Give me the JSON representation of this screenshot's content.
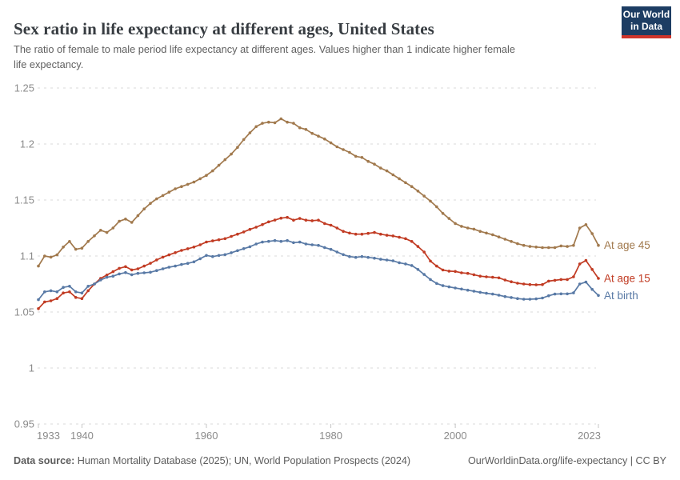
{
  "header": {
    "title": "Sex ratio in life expectancy at different ages, United States",
    "subtitle_line1": "The ratio of female to male period life expectancy at different ages. Values higher than 1 indicate higher female",
    "subtitle_line2": "life expectancy.",
    "logo": {
      "line1": "Our World",
      "line2": "in Data",
      "bg_color": "#1d3d63",
      "accent_color": "#cf352b"
    }
  },
  "footer": {
    "datasource_label": "Data source:",
    "datasource_text": " Human Mortality Database (2025); UN, World Population Prospects (2024)",
    "right_text": "OurWorldinData.org/life-expectancy | CC BY"
  },
  "chart_data": {
    "type": "line",
    "title": "Sex ratio in life expectancy at different ages, United States",
    "xlabel": "",
    "ylabel": "",
    "ylim": [
      0.95,
      1.25
    ],
    "yticks": [
      0.95,
      1,
      1.05,
      1.1,
      1.15,
      1.2,
      1.25
    ],
    "xticks": [
      1933,
      1940,
      1960,
      1980,
      2000,
      2023
    ],
    "grid": "horizontal-dashed",
    "legend_position": "end-of-line-labels",
    "marker": "dot",
    "axis_text_color": "#8b8b8b",
    "grid_color": "#d8d8d8",
    "x": [
      1933,
      1934,
      1935,
      1936,
      1937,
      1938,
      1939,
      1940,
      1941,
      1942,
      1943,
      1944,
      1945,
      1946,
      1947,
      1948,
      1949,
      1950,
      1951,
      1952,
      1953,
      1954,
      1955,
      1956,
      1957,
      1958,
      1959,
      1960,
      1961,
      1962,
      1963,
      1964,
      1965,
      1966,
      1967,
      1968,
      1969,
      1970,
      1971,
      1972,
      1973,
      1974,
      1975,
      1976,
      1977,
      1978,
      1979,
      1980,
      1981,
      1982,
      1983,
      1984,
      1985,
      1986,
      1987,
      1988,
      1989,
      1990,
      1991,
      1992,
      1993,
      1994,
      1995,
      1996,
      1997,
      1998,
      1999,
      2000,
      2001,
      2002,
      2003,
      2004,
      2005,
      2006,
      2007,
      2008,
      2009,
      2010,
      2011,
      2012,
      2013,
      2014,
      2015,
      2016,
      2017,
      2018,
      2019,
      2020,
      2021,
      2022,
      2023
    ],
    "series": [
      {
        "name": "At age 45",
        "color": "#A1794D",
        "values": [
          1.091,
          1.1,
          1.099,
          1.101,
          1.108,
          1.113,
          1.106,
          1.107,
          1.113,
          1.118,
          1.123,
          1.121,
          1.125,
          1.131,
          1.133,
          1.13,
          1.136,
          1.142,
          1.147,
          1.151,
          1.154,
          1.157,
          1.16,
          1.162,
          1.164,
          1.166,
          1.169,
          1.172,
          1.176,
          1.181,
          1.186,
          1.191,
          1.197,
          1.204,
          1.21,
          1.2155,
          1.2185,
          1.2195,
          1.219,
          1.2225,
          1.2195,
          1.2185,
          1.2145,
          1.213,
          1.2095,
          1.207,
          1.2045,
          1.201,
          1.1975,
          1.195,
          1.1925,
          1.189,
          1.188,
          1.1845,
          1.182,
          1.1785,
          1.176,
          1.1725,
          1.169,
          1.1655,
          1.162,
          1.158,
          1.1535,
          1.149,
          1.144,
          1.138,
          1.1335,
          1.129,
          1.1265,
          1.125,
          1.124,
          1.122,
          1.1205,
          1.119,
          1.117,
          1.115,
          1.113,
          1.111,
          1.1095,
          1.1085,
          1.108,
          1.1075,
          1.1075,
          1.1075,
          1.109,
          1.1085,
          1.1095,
          1.125,
          1.128,
          1.12,
          1.1095
        ]
      },
      {
        "name": "At age 15",
        "color": "#C13B23",
        "values": [
          1.053,
          1.059,
          1.06,
          1.062,
          1.067,
          1.068,
          1.063,
          1.062,
          1.069,
          1.075,
          1.08,
          1.083,
          1.086,
          1.089,
          1.0905,
          1.0876,
          1.0886,
          1.091,
          1.0935,
          1.0965,
          1.099,
          1.101,
          1.103,
          1.105,
          1.1065,
          1.108,
          1.11,
          1.1125,
          1.1135,
          1.1145,
          1.1155,
          1.1175,
          1.1195,
          1.1215,
          1.1238,
          1.1257,
          1.1281,
          1.1305,
          1.1321,
          1.1338,
          1.1345,
          1.132,
          1.1335,
          1.132,
          1.1315,
          1.132,
          1.129,
          1.1275,
          1.125,
          1.122,
          1.1205,
          1.1195,
          1.1195,
          1.1202,
          1.121,
          1.1195,
          1.1185,
          1.1179,
          1.1167,
          1.1155,
          1.113,
          1.1085,
          1.1035,
          1.0955,
          1.091,
          1.0875,
          1.0865,
          1.0862,
          1.085,
          1.0845,
          1.0833,
          1.082,
          1.0814,
          1.081,
          1.0805,
          1.0786,
          1.077,
          1.0757,
          1.075,
          1.0745,
          1.0743,
          1.0745,
          1.0776,
          1.0783,
          1.079,
          1.079,
          1.0814,
          1.0929,
          1.096,
          1.088,
          1.08
        ]
      },
      {
        "name": "At birth",
        "color": "#5879A5",
        "values": [
          1.061,
          1.068,
          1.069,
          1.068,
          1.072,
          1.073,
          1.068,
          1.067,
          1.073,
          1.075,
          1.0786,
          1.081,
          1.082,
          1.084,
          1.0852,
          1.0833,
          1.0845,
          1.085,
          1.0855,
          1.087,
          1.0886,
          1.09,
          1.091,
          1.0924,
          1.0934,
          1.0948,
          1.0976,
          1.1005,
          1.0995,
          1.1005,
          1.1012,
          1.1029,
          1.1048,
          1.1066,
          1.1083,
          1.1107,
          1.1124,
          1.1131,
          1.1138,
          1.1131,
          1.1138,
          1.1119,
          1.1124,
          1.1107,
          1.11,
          1.1095,
          1.1076,
          1.1059,
          1.1036,
          1.1012,
          1.0995,
          1.0988,
          1.0995,
          1.0988,
          1.0981,
          1.0971,
          1.0964,
          1.0957,
          1.094,
          1.0929,
          1.0915,
          1.088,
          1.0835,
          1.079,
          1.0755,
          1.0735,
          1.0724,
          1.0714,
          1.0705,
          1.0695,
          1.0686,
          1.0676,
          1.0667,
          1.066,
          1.065,
          1.0638,
          1.0629,
          1.062,
          1.0614,
          1.0614,
          1.0617,
          1.0625,
          1.0645,
          1.066,
          1.0662,
          1.0662,
          1.0671,
          1.075,
          1.0767,
          1.0702,
          1.0648
        ]
      }
    ]
  }
}
